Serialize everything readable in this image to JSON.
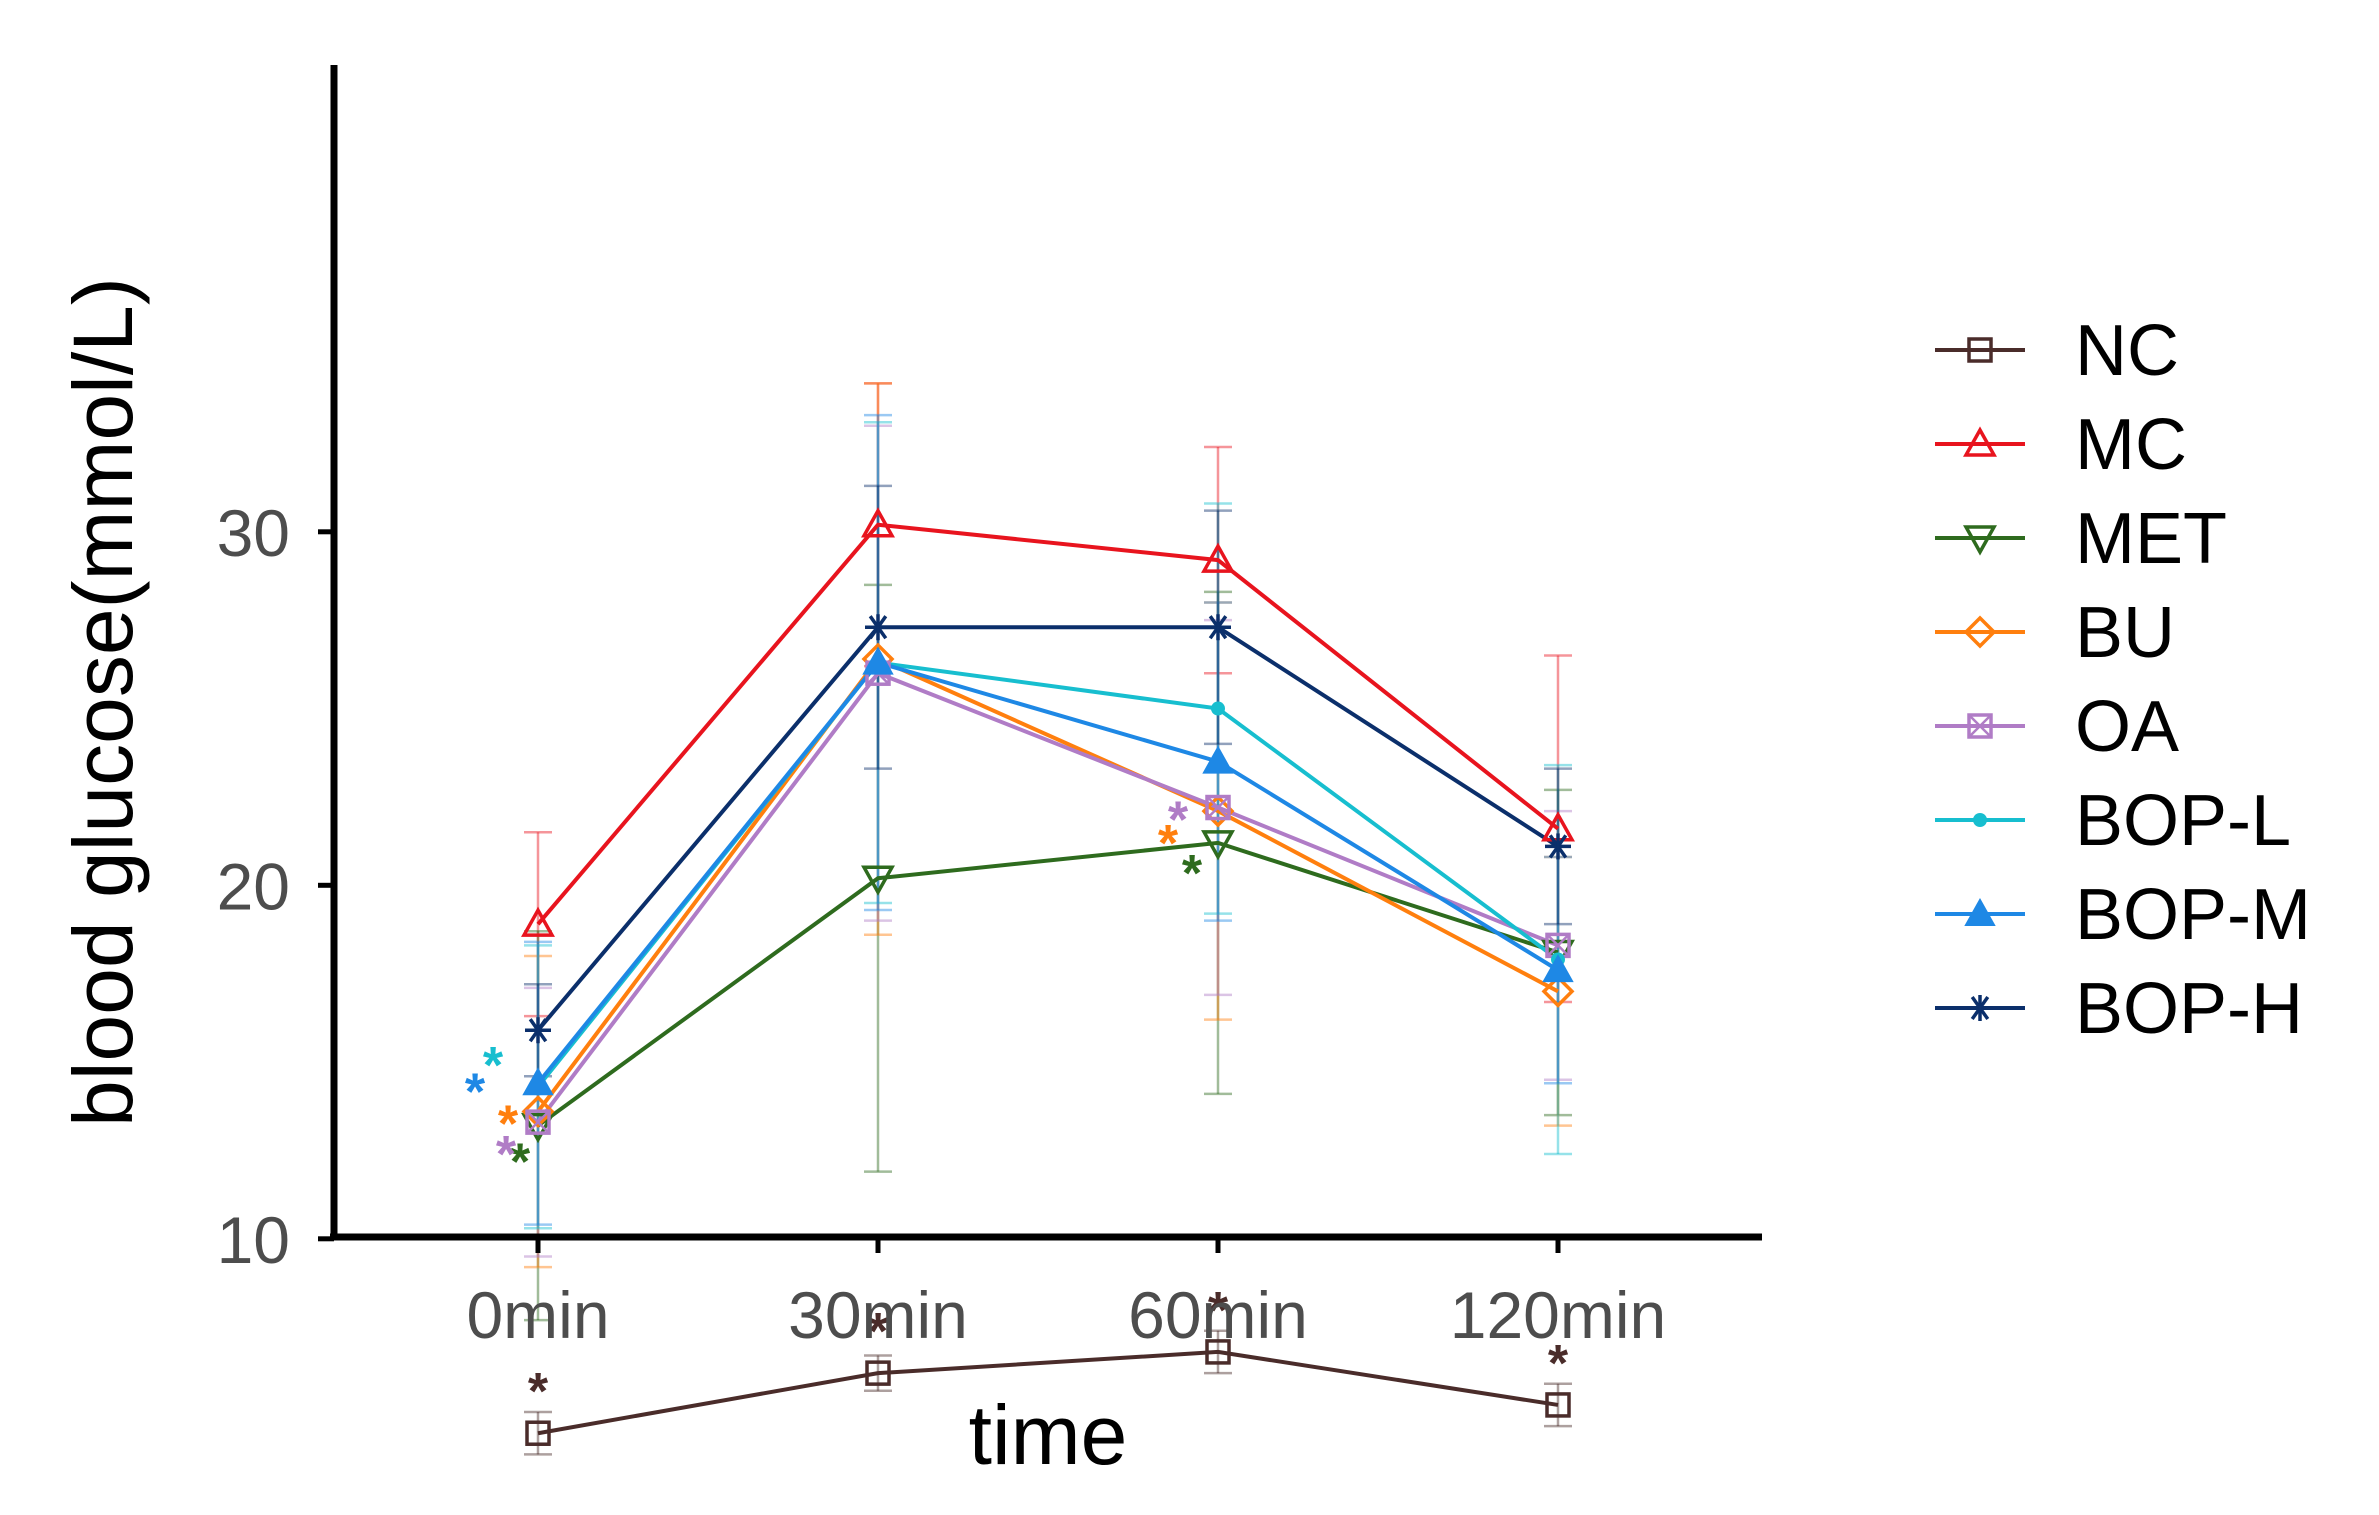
{
  "chart_data": {
    "type": "line",
    "xlabel": "time",
    "ylabel": "blood glucose(mmol/L)",
    "categories": [
      "0min",
      "30min",
      "60min",
      "120min"
    ],
    "y_ticks": [
      10,
      20,
      30
    ],
    "ylim": [
      3.3,
      35.5
    ],
    "legend_position": "right",
    "grid": false,
    "error_bars": true,
    "significance_marker": "*",
    "series": [
      {
        "name": "NC",
        "color": "#4a2c2a",
        "marker": "square-open",
        "values": [
          4.5,
          6.2,
          6.8,
          5.3
        ],
        "errors": [
          0.6,
          0.5,
          0.6,
          0.6
        ],
        "significant": [
          true,
          true,
          true,
          true
        ]
      },
      {
        "name": "MC",
        "color": "#e8141e",
        "marker": "triangle-up-open",
        "values": [
          18.9,
          30.2,
          29.2,
          21.6
        ],
        "errors": [
          2.6,
          4.0,
          3.2,
          4.9
        ],
        "significant": [
          false,
          false,
          false,
          false
        ]
      },
      {
        "name": "MET",
        "color": "#2e6b1e",
        "marker": "triangle-down-open",
        "values": [
          13.2,
          20.2,
          21.2,
          18.1
        ],
        "errors": [
          5.5,
          8.3,
          7.1,
          4.6
        ],
        "significant": [
          true,
          false,
          true,
          false
        ]
      },
      {
        "name": "BU",
        "color": "#ff7f0e",
        "marker": "diamond-open",
        "values": [
          13.6,
          26.4,
          22.1,
          17.0
        ],
        "errors": [
          4.4,
          7.8,
          5.9,
          3.8
        ],
        "significant": [
          true,
          false,
          true,
          false
        ]
      },
      {
        "name": "OA",
        "color": "#b07cc6",
        "marker": "square-x-open",
        "values": [
          13.3,
          26.0,
          22.2,
          18.3
        ],
        "errors": [
          3.8,
          7.0,
          5.3,
          3.8
        ],
        "significant": [
          true,
          false,
          true,
          false
        ]
      },
      {
        "name": "BOP-L",
        "color": "#17becf",
        "marker": "circle-filled",
        "values": [
          14.3,
          26.3,
          25.0,
          17.9
        ],
        "errors": [
          4.0,
          6.8,
          5.8,
          5.5
        ],
        "significant": [
          true,
          false,
          false,
          false
        ]
      },
      {
        "name": "BOP-M",
        "color": "#1e88e5",
        "marker": "triangle-up-filled",
        "values": [
          14.4,
          26.3,
          23.5,
          17.6
        ],
        "errors": [
          4.0,
          7.0,
          4.5,
          3.2
        ],
        "significant": [
          true,
          false,
          false,
          false
        ]
      },
      {
        "name": "BOP-H",
        "color": "#0b2f6b",
        "marker": "asterisk",
        "values": [
          15.9,
          27.3,
          27.3,
          21.1
        ],
        "errors": [
          1.3,
          4.0,
          3.3,
          2.2
        ],
        "significant": [
          false,
          false,
          false,
          false
        ]
      }
    ]
  }
}
